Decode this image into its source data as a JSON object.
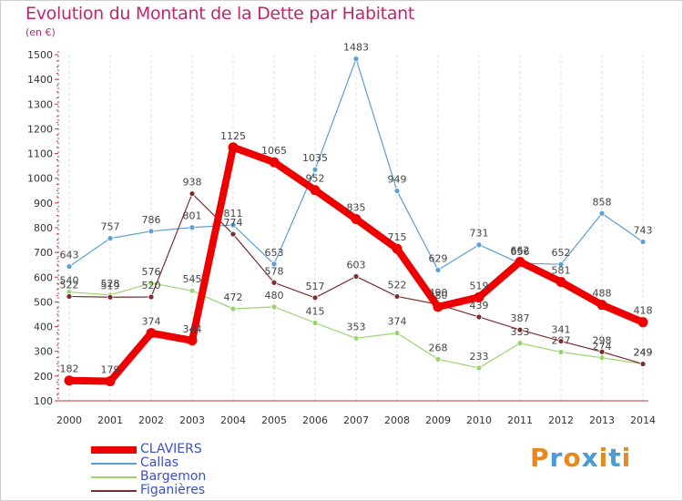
{
  "title": "Evolution du Montant de la Dette par Habitant",
  "subtitle": "(en €)",
  "logo_text": "Proxiti",
  "logo_colors": [
    "#e8891e",
    "#4a9bd6",
    "#e8891e",
    "#4a9bd6",
    "#e8891e",
    "#4a9bd6",
    "#e8891e"
  ],
  "chart_data": {
    "type": "line",
    "categories": [
      "2000",
      "2001",
      "2002",
      "2003",
      "2004",
      "2005",
      "2006",
      "2007",
      "2008",
      "2009",
      "2010",
      "2011",
      "2012",
      "2013",
      "2014"
    ],
    "ylim": [
      100,
      1500
    ],
    "yticks": [
      100,
      200,
      300,
      400,
      500,
      600,
      700,
      800,
      900,
      1000,
      1100,
      1200,
      1300,
      1400,
      1500
    ],
    "grid": "vertical-dashed",
    "legend_position": "bottom-left",
    "series": [
      {
        "name": "Callas",
        "color": "#5b9fd4",
        "width": 1.2,
        "values": [
          643,
          757,
          786,
          801,
          811,
          653,
          1035,
          1483,
          949,
          629,
          731,
          656,
          652,
          858,
          743
        ],
        "labels": [
          "643",
          "757",
          "786",
          "801",
          "811",
          "653",
          "1035",
          "1483",
          "949",
          "629",
          "731",
          "656",
          "652",
          "858",
          "743"
        ]
      },
      {
        "name": "Bargemon",
        "color": "#99d46c",
        "width": 1.2,
        "values": [
          540,
          528,
          576,
          545,
          472,
          480,
          415,
          353,
          374,
          268,
          233,
          333,
          297,
          274,
          249
        ],
        "labels": [
          "540",
          "528",
          "576",
          "545",
          "472",
          "480",
          "415",
          "353",
          "374",
          "268",
          "233",
          "333",
          "297",
          "274",
          "249"
        ]
      },
      {
        "name": "Figanières",
        "color": "#7a2e31",
        "width": 1.2,
        "values": [
          522,
          519,
          520,
          938,
          774,
          578,
          517,
          603,
          522,
          490,
          439,
          387,
          341,
          298,
          249
        ],
        "labels": [
          "522",
          "519",
          "520",
          "938",
          "774",
          "578",
          "517",
          "603",
          "522",
          "490",
          "439",
          "387",
          "341",
          "298",
          "249"
        ]
      },
      {
        "name": "CLAVIERS",
        "color": "#ee0000",
        "width": 8,
        "values": [
          182,
          179,
          374,
          344,
          1125,
          1065,
          952,
          835,
          715,
          480,
          519,
          662,
          581,
          488,
          418
        ],
        "labels": [
          "182",
          "179",
          "374",
          "344",
          "1125",
          "1065",
          "952",
          "835",
          "715",
          "480",
          "519",
          "662",
          "581",
          "488",
          "418"
        ]
      }
    ],
    "legend_order": [
      "CLAVIERS",
      "Callas",
      "Bargemon",
      "Figanières"
    ]
  }
}
